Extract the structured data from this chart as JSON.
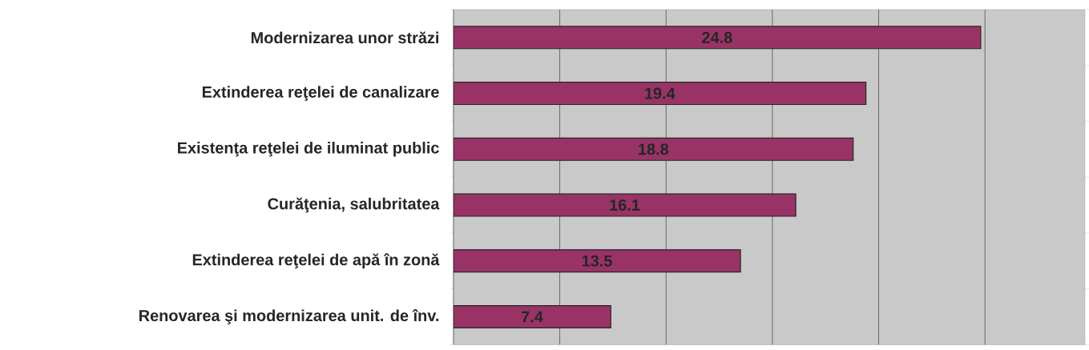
{
  "chart_data": {
    "type": "bar",
    "orientation": "horizontal",
    "categories": [
      "Modernizarea unor străzi",
      "Extinderea reţelei de canalizare",
      "Existenţa reţelei de iluminat public",
      "Curăţenia, salubritatea",
      "Extinderea reţelei de apă în zonă",
      "Renovarea şi modernizarea unit. de înv."
    ],
    "values": [
      24.8,
      19.4,
      18.8,
      16.1,
      13.5,
      7.4
    ],
    "color": "#993366",
    "xlim": [
      0,
      29.7
    ],
    "xticks": [
      {
        "value": 0,
        "label": null
      },
      {
        "value": 5,
        "label": null
      },
      {
        "value": 10,
        "label": null
      },
      {
        "value": 15,
        "label": null
      },
      {
        "value": 20,
        "label": null
      },
      {
        "value": 25,
        "label": null
      }
    ],
    "grid": "x",
    "data_labels": true,
    "tick_labels": "y"
  }
}
